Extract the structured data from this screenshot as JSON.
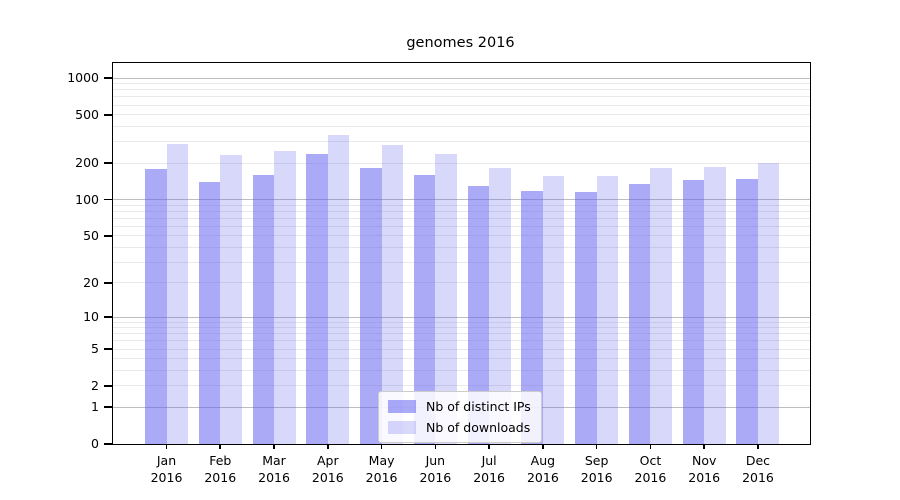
{
  "chart_data": {
    "type": "bar",
    "title": "genomes 2016",
    "categories": [
      "Jan",
      "Feb",
      "Mar",
      "Apr",
      "May",
      "Jun",
      "Jul",
      "Aug",
      "Sep",
      "Oct",
      "Nov",
      "Dec"
    ],
    "year_label": "2016",
    "series": [
      {
        "name": "Nb of distinct IPs",
        "color": "rgba(100,100,240,0.55)",
        "values": [
          180,
          140,
          160,
          240,
          184,
          159,
          130,
          117,
          115,
          134,
          145,
          149
        ]
      },
      {
        "name": "Nb of downloads",
        "color": "rgba(100,100,240,0.25)",
        "values": [
          285,
          232,
          252,
          340,
          283,
          237,
          182,
          157,
          157,
          182,
          187,
          202
        ]
      }
    ],
    "y_axis": {
      "scale": "log1p",
      "ticks": [
        0,
        1,
        2,
        5,
        10,
        20,
        50,
        100,
        200,
        500,
        1000
      ],
      "major_gridlines": [
        1,
        10,
        100,
        1000
      ],
      "max": 1330
    },
    "x_axis": {
      "label": "",
      "tick_format": "month + year, two lines"
    },
    "legend_position": "lower center",
    "grid": true,
    "colors": {
      "bar_dark_hex": "#aaaaf4",
      "bar_light_hex": "#d9d9fa",
      "grid_major": "#bdbdbd",
      "grid_minor": "#e9e9e9",
      "spine": "#000000",
      "background": "#ffffff"
    }
  }
}
